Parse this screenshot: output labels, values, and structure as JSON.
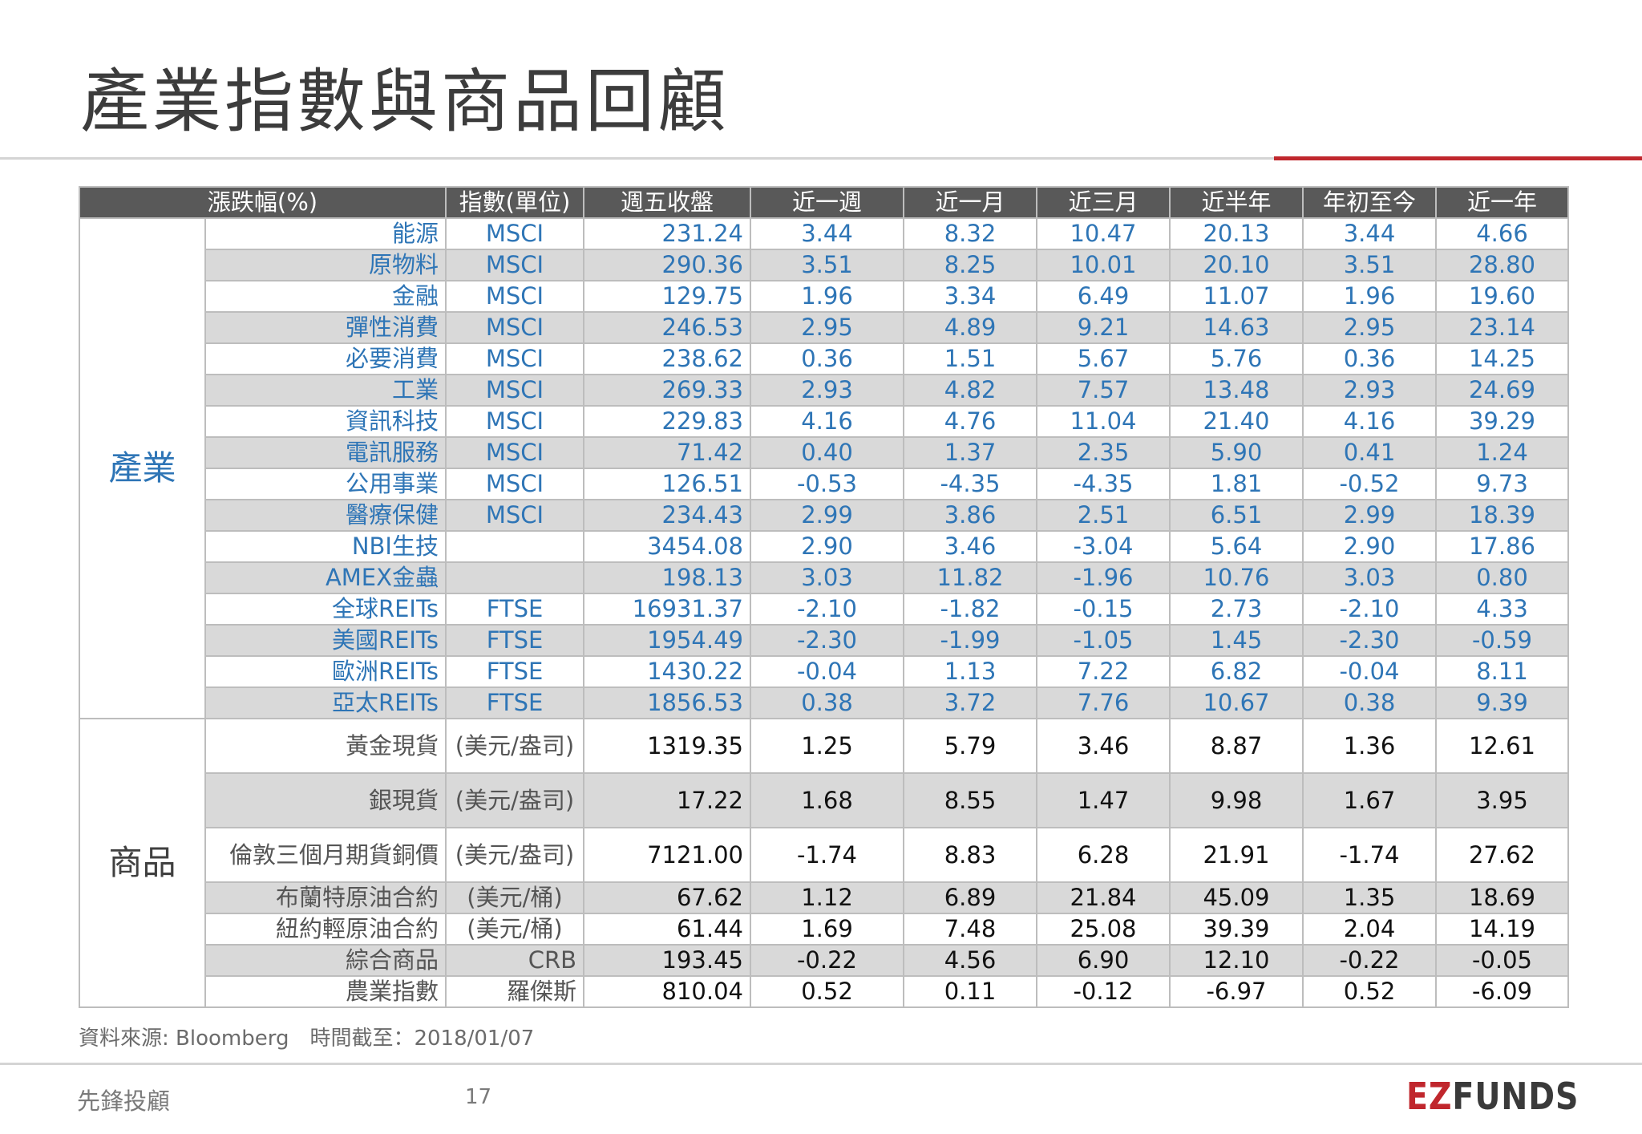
{
  "title": "產業指數與商品回顧",
  "header": {
    "label": "漲跌幅(%)",
    "unit": "指數(單位)",
    "close": "週五收盤",
    "w1": "近一週",
    "m1": "近一月",
    "m3": "近三月",
    "m6": "近半年",
    "ytd": "年初至今",
    "y1": "近一年"
  },
  "groups": {
    "industry": "產業",
    "commodity": "商品"
  },
  "industry_rows": [
    {
      "name": "能源",
      "unit": "MSCI",
      "close": "231.24",
      "w1": "3.44",
      "m1": "8.32",
      "m3": "10.47",
      "m6": "20.13",
      "ytd": "3.44",
      "y1": "4.66"
    },
    {
      "name": "原物料",
      "unit": "MSCI",
      "close": "290.36",
      "w1": "3.51",
      "m1": "8.25",
      "m3": "10.01",
      "m6": "20.10",
      "ytd": "3.51",
      "y1": "28.80"
    },
    {
      "name": "金融",
      "unit": "MSCI",
      "close": "129.75",
      "w1": "1.96",
      "m1": "3.34",
      "m3": "6.49",
      "m6": "11.07",
      "ytd": "1.96",
      "y1": "19.60"
    },
    {
      "name": "彈性消費",
      "unit": "MSCI",
      "close": "246.53",
      "w1": "2.95",
      "m1": "4.89",
      "m3": "9.21",
      "m6": "14.63",
      "ytd": "2.95",
      "y1": "23.14"
    },
    {
      "name": "必要消費",
      "unit": "MSCI",
      "close": "238.62",
      "w1": "0.36",
      "m1": "1.51",
      "m3": "5.67",
      "m6": "5.76",
      "ytd": "0.36",
      "y1": "14.25"
    },
    {
      "name": "工業",
      "unit": "MSCI",
      "close": "269.33",
      "w1": "2.93",
      "m1": "4.82",
      "m3": "7.57",
      "m6": "13.48",
      "ytd": "2.93",
      "y1": "24.69"
    },
    {
      "name": "資訊科技",
      "unit": "MSCI",
      "close": "229.83",
      "w1": "4.16",
      "m1": "4.76",
      "m3": "11.04",
      "m6": "21.40",
      "ytd": "4.16",
      "y1": "39.29"
    },
    {
      "name": "電訊服務",
      "unit": "MSCI",
      "close": "71.42",
      "w1": "0.40",
      "m1": "1.37",
      "m3": "2.35",
      "m6": "5.90",
      "ytd": "0.41",
      "y1": "1.24"
    },
    {
      "name": "公用事業",
      "unit": "MSCI",
      "close": "126.51",
      "w1": "-0.53",
      "m1": "-4.35",
      "m3": "-4.35",
      "m6": "1.81",
      "ytd": "-0.52",
      "y1": "9.73"
    },
    {
      "name": "醫療保健",
      "unit": "MSCI",
      "close": "234.43",
      "w1": "2.99",
      "m1": "3.86",
      "m3": "2.51",
      "m6": "6.51",
      "ytd": "2.99",
      "y1": "18.39"
    },
    {
      "name": "NBI生技",
      "unit": "",
      "close": "3454.08",
      "w1": "2.90",
      "m1": "3.46",
      "m3": "-3.04",
      "m6": "5.64",
      "ytd": "2.90",
      "y1": "17.86"
    },
    {
      "name": "AMEX金蟲",
      "unit": "",
      "close": "198.13",
      "w1": "3.03",
      "m1": "11.82",
      "m3": "-1.96",
      "m6": "10.76",
      "ytd": "3.03",
      "y1": "0.80"
    },
    {
      "name": "全球REITs",
      "unit": "FTSE",
      "close": "16931.37",
      "w1": "-2.10",
      "m1": "-1.82",
      "m3": "-0.15",
      "m6": "2.73",
      "ytd": "-2.10",
      "y1": "4.33"
    },
    {
      "name": "美國REITs",
      "unit": "FTSE",
      "close": "1954.49",
      "w1": "-2.30",
      "m1": "-1.99",
      "m3": "-1.05",
      "m6": "1.45",
      "ytd": "-2.30",
      "y1": "-0.59"
    },
    {
      "name": "歐洲REITs",
      "unit": "FTSE",
      "close": "1430.22",
      "w1": "-0.04",
      "m1": "1.13",
      "m3": "7.22",
      "m6": "6.82",
      "ytd": "-0.04",
      "y1": "8.11"
    },
    {
      "name": "亞太REITs",
      "unit": "FTSE",
      "close": "1856.53",
      "w1": "0.38",
      "m1": "3.72",
      "m3": "7.76",
      "m6": "10.67",
      "ytd": "0.38",
      "y1": "9.39"
    }
  ],
  "commodity_rows": [
    {
      "name": "黃金現貨",
      "unit": "(美元/盎司)",
      "close": "1319.35",
      "w1": "1.25",
      "m1": "5.79",
      "m3": "3.46",
      "m6": "8.87",
      "ytd": "1.36",
      "y1": "12.61"
    },
    {
      "name": "銀現貨",
      "unit": "(美元/盎司)",
      "close": "17.22",
      "w1": "1.68",
      "m1": "8.55",
      "m3": "1.47",
      "m6": "9.98",
      "ytd": "1.67",
      "y1": "3.95"
    },
    {
      "name": "倫敦三個月期貨銅價",
      "unit": "(美元/盎司)",
      "close": "7121.00",
      "w1": "-1.74",
      "m1": "8.83",
      "m3": "6.28",
      "m6": "21.91",
      "ytd": "-1.74",
      "y1": "27.62"
    },
    {
      "name": "布蘭特原油合約",
      "unit": "(美元/桶)",
      "close": "67.62",
      "w1": "1.12",
      "m1": "6.89",
      "m3": "21.84",
      "m6": "45.09",
      "ytd": "1.35",
      "y1": "18.69"
    },
    {
      "name": "紐約輕原油合約",
      "unit": "(美元/桶)",
      "close": "61.44",
      "w1": "1.69",
      "m1": "7.48",
      "m3": "25.08",
      "m6": "39.39",
      "ytd": "2.04",
      "y1": "14.19"
    },
    {
      "name": "綜合商品",
      "unit": "CRB",
      "close": "193.45",
      "w1": "-0.22",
      "m1": "4.56",
      "m3": "6.90",
      "m6": "12.10",
      "ytd": "-0.22",
      "y1": "-0.05"
    },
    {
      "name": "農業指數",
      "unit": "羅傑斯",
      "close": "810.04",
      "w1": "0.52",
      "m1": "0.11",
      "m3": "-0.12",
      "m6": "-6.97",
      "ytd": "0.52",
      "y1": "-6.09"
    }
  ],
  "source": "資料來源: Bloomberg　時間截至：2018/01/07",
  "footer": {
    "company": "先鋒投顧",
    "page": "17",
    "logo_ez": "EZ",
    "logo_funds": "FUNDS"
  },
  "colors": {
    "accent_red": "#c0272d",
    "header_gray": "#595959",
    "row_shade": "#d9d9d9",
    "industry_blue": "#2e75b6"
  }
}
